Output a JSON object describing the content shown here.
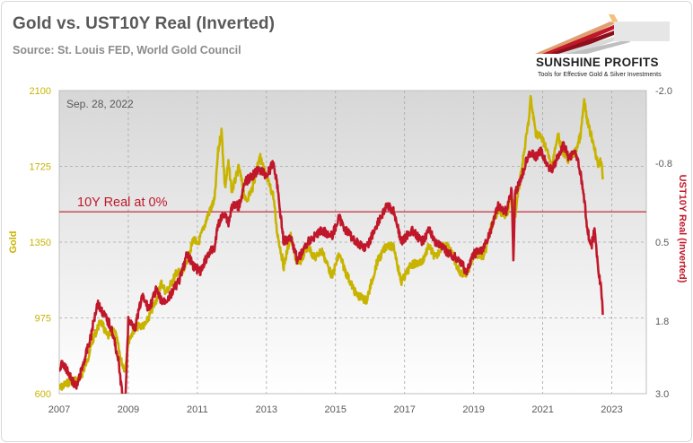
{
  "header": {
    "title": "Gold vs. UST10Y Real (Inverted)",
    "subtitle": "Source: St. Louis FED, World Gold Council"
  },
  "logo": {
    "name": "SUNSHINE PROFITS",
    "tagline": "Tools for Effective Gold & Silver Investments"
  },
  "colors": {
    "gold": "#c8b400",
    "real": "#c0182a",
    "zero_line": "#c0182a",
    "plot_bg_top": "#d7d7d7",
    "plot_bg_bottom": "#ffffff",
    "grid": "#a6a6a6"
  },
  "chart_data": {
    "type": "line",
    "title": "Gold vs. UST10Y Real (Inverted)",
    "date_annotation": "Sep. 28, 2022",
    "zero_label": "10Y Real at 0%",
    "x_range": [
      2007.0,
      2024.0
    ],
    "x_ticks": [
      2007,
      2009,
      2011,
      2013,
      2015,
      2017,
      2019,
      2021,
      2023
    ],
    "left_axis": {
      "label": "Gold",
      "range": [
        600,
        2100
      ],
      "ticks": [
        600,
        975,
        1350,
        1725,
        2100
      ]
    },
    "right_axis": {
      "label": "UST10Y Real (Inverted)",
      "inverted": true,
      "range": [
        -2.0,
        3.0
      ],
      "tick_values": [
        -2.0,
        -0.8,
        0.5,
        1.8,
        3.0
      ],
      "tick_labels": [
        "-2.0",
        "-0.8",
        "0.5",
        "1.8",
        "3.0"
      ]
    },
    "zero_value": 0.0,
    "series": [
      {
        "name": "Gold",
        "axis": "left",
        "color": "#c8b400",
        "points": [
          [
            2007.0,
            625
          ],
          [
            2007.3,
            660
          ],
          [
            2007.6,
            670
          ],
          [
            2007.8,
            760
          ],
          [
            2008.0,
            880
          ],
          [
            2008.2,
            960
          ],
          [
            2008.4,
            880
          ],
          [
            2008.6,
            920
          ],
          [
            2008.8,
            760
          ],
          [
            2008.9,
            720
          ],
          [
            2009.0,
            860
          ],
          [
            2009.2,
            930
          ],
          [
            2009.5,
            940
          ],
          [
            2009.8,
            1060
          ],
          [
            2009.95,
            1150
          ],
          [
            2010.1,
            1100
          ],
          [
            2010.4,
            1200
          ],
          [
            2010.6,
            1200
          ],
          [
            2010.9,
            1370
          ],
          [
            2011.0,
            1330
          ],
          [
            2011.3,
            1480
          ],
          [
            2011.5,
            1560
          ],
          [
            2011.6,
            1800
          ],
          [
            2011.7,
            1900
          ],
          [
            2011.8,
            1620
          ],
          [
            2011.9,
            1740
          ],
          [
            2012.0,
            1600
          ],
          [
            2012.2,
            1720
          ],
          [
            2012.4,
            1550
          ],
          [
            2012.6,
            1620
          ],
          [
            2012.8,
            1780
          ],
          [
            2013.0,
            1670
          ],
          [
            2013.2,
            1580
          ],
          [
            2013.3,
            1410
          ],
          [
            2013.5,
            1230
          ],
          [
            2013.7,
            1380
          ],
          [
            2013.9,
            1230
          ],
          [
            2014.2,
            1330
          ],
          [
            2014.4,
            1270
          ],
          [
            2014.6,
            1310
          ],
          [
            2014.9,
            1180
          ],
          [
            2015.1,
            1290
          ],
          [
            2015.3,
            1200
          ],
          [
            2015.6,
            1090
          ],
          [
            2015.9,
            1060
          ],
          [
            2016.2,
            1250
          ],
          [
            2016.5,
            1340
          ],
          [
            2016.7,
            1320
          ],
          [
            2016.9,
            1150
          ],
          [
            2017.2,
            1240
          ],
          [
            2017.5,
            1250
          ],
          [
            2017.7,
            1330
          ],
          [
            2017.9,
            1270
          ],
          [
            2018.1,
            1340
          ],
          [
            2018.3,
            1320
          ],
          [
            2018.6,
            1200
          ],
          [
            2018.8,
            1190
          ],
          [
            2019.0,
            1290
          ],
          [
            2019.3,
            1280
          ],
          [
            2019.5,
            1420
          ],
          [
            2019.7,
            1510
          ],
          [
            2019.95,
            1480
          ],
          [
            2020.1,
            1580
          ],
          [
            2020.2,
            1480
          ],
          [
            2020.4,
            1720
          ],
          [
            2020.6,
            1960
          ],
          [
            2020.65,
            2060
          ],
          [
            2020.8,
            1890
          ],
          [
            2020.95,
            1870
          ],
          [
            2021.1,
            1820
          ],
          [
            2021.25,
            1720
          ],
          [
            2021.45,
            1880
          ],
          [
            2021.6,
            1780
          ],
          [
            2021.75,
            1760
          ],
          [
            2021.95,
            1800
          ],
          [
            2022.1,
            1880
          ],
          [
            2022.2,
            2050
          ],
          [
            2022.3,
            1940
          ],
          [
            2022.4,
            1880
          ],
          [
            2022.5,
            1820
          ],
          [
            2022.6,
            1730
          ],
          [
            2022.7,
            1760
          ],
          [
            2022.74,
            1660
          ]
        ]
      },
      {
        "name": "UST10Y Real (Inverted)",
        "axis": "right",
        "color": "#c0182a",
        "points": [
          [
            2007.0,
            2.6
          ],
          [
            2007.1,
            2.5
          ],
          [
            2007.3,
            2.7
          ],
          [
            2007.5,
            2.9
          ],
          [
            2007.7,
            2.5
          ],
          [
            2007.9,
            2.1
          ],
          [
            2008.1,
            1.5
          ],
          [
            2008.3,
            1.7
          ],
          [
            2008.5,
            1.9
          ],
          [
            2008.7,
            2.4
          ],
          [
            2008.8,
            2.9
          ],
          [
            2008.9,
            3.3
          ],
          [
            2009.0,
            1.8
          ],
          [
            2009.2,
            1.9
          ],
          [
            2009.4,
            1.4
          ],
          [
            2009.6,
            1.6
          ],
          [
            2009.8,
            1.3
          ],
          [
            2010.0,
            1.5
          ],
          [
            2010.2,
            1.4
          ],
          [
            2010.5,
            1.1
          ],
          [
            2010.7,
            0.7
          ],
          [
            2010.9,
            0.9
          ],
          [
            2011.1,
            1.0
          ],
          [
            2011.3,
            0.7
          ],
          [
            2011.5,
            0.6
          ],
          [
            2011.6,
            0.2
          ],
          [
            2011.8,
            0.0
          ],
          [
            2011.9,
            0.2
          ],
          [
            2012.0,
            -0.1
          ],
          [
            2012.2,
            -0.1
          ],
          [
            2012.4,
            -0.5
          ],
          [
            2012.6,
            -0.6
          ],
          [
            2012.8,
            -0.7
          ],
          [
            2013.0,
            -0.6
          ],
          [
            2013.2,
            -0.8
          ],
          [
            2013.3,
            -0.5
          ],
          [
            2013.5,
            0.5
          ],
          [
            2013.7,
            0.4
          ],
          [
            2013.9,
            0.8
          ],
          [
            2014.2,
            0.5
          ],
          [
            2014.4,
            0.4
          ],
          [
            2014.6,
            0.3
          ],
          [
            2014.9,
            0.4
          ],
          [
            2015.1,
            0.1
          ],
          [
            2015.3,
            0.3
          ],
          [
            2015.6,
            0.5
          ],
          [
            2015.9,
            0.6
          ],
          [
            2016.2,
            0.2
          ],
          [
            2016.5,
            -0.1
          ],
          [
            2016.7,
            0.0
          ],
          [
            2016.9,
            0.5
          ],
          [
            2017.2,
            0.3
          ],
          [
            2017.5,
            0.5
          ],
          [
            2017.7,
            0.3
          ],
          [
            2017.9,
            0.5
          ],
          [
            2018.1,
            0.6
          ],
          [
            2018.3,
            0.7
          ],
          [
            2018.6,
            0.8
          ],
          [
            2018.8,
            1.0
          ],
          [
            2019.0,
            0.7
          ],
          [
            2019.3,
            0.6
          ],
          [
            2019.5,
            0.3
          ],
          [
            2019.7,
            -0.1
          ],
          [
            2019.95,
            0.0
          ],
          [
            2020.1,
            -0.4
          ],
          [
            2020.15,
            0.8
          ],
          [
            2020.2,
            -0.3
          ],
          [
            2020.4,
            -0.6
          ],
          [
            2020.6,
            -1.0
          ],
          [
            2020.8,
            -0.9
          ],
          [
            2020.95,
            -1.0
          ],
          [
            2021.1,
            -0.8
          ],
          [
            2021.25,
            -0.7
          ],
          [
            2021.45,
            -0.9
          ],
          [
            2021.6,
            -1.1
          ],
          [
            2021.75,
            -0.9
          ],
          [
            2021.95,
            -1.0
          ],
          [
            2022.1,
            -0.6
          ],
          [
            2022.2,
            -0.2
          ],
          [
            2022.3,
            0.3
          ],
          [
            2022.4,
            0.6
          ],
          [
            2022.5,
            0.3
          ],
          [
            2022.6,
            0.9
          ],
          [
            2022.7,
            1.3
          ],
          [
            2022.74,
            1.7
          ]
        ]
      }
    ]
  }
}
